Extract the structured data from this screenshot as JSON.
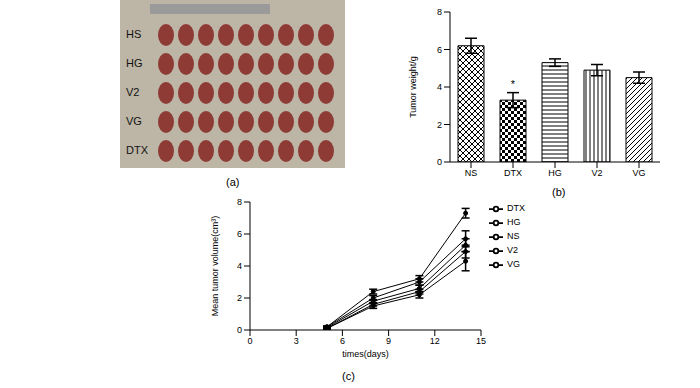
{
  "chart_data": [
    {
      "type": "image",
      "caption": "(a)",
      "row_labels": [
        "HS",
        "HG",
        "V2",
        "VG",
        "DTX"
      ]
    },
    {
      "type": "bar",
      "caption": "(b)",
      "categories": [
        "NS",
        "DTX",
        "HG",
        "V2",
        "VG"
      ],
      "values": [
        6.2,
        3.3,
        5.3,
        4.9,
        4.5
      ],
      "errors": [
        0.4,
        0.4,
        0.2,
        0.3,
        0.3
      ],
      "color": "#000000",
      "y_label": "Tumor weight/g",
      "ylim": [
        0,
        8
      ],
      "yticks": [
        0,
        2,
        4,
        6,
        8
      ],
      "annotations": [
        {
          "category": "DTX",
          "text": "*"
        }
      ]
    },
    {
      "type": "line",
      "caption": "(c)",
      "x": [
        5,
        8,
        11,
        14
      ],
      "series": [
        {
          "name": "NS",
          "color": "#000000",
          "values": [
            0.2,
            2.4,
            3.2,
            7.3
          ],
          "errors": [
            0.05,
            0.15,
            0.2,
            0.3
          ]
        },
        {
          "name": "DTX",
          "color": "#000000",
          "values": [
            0.1,
            1.5,
            2.2,
            4.3
          ],
          "errors": [
            0.05,
            0.15,
            0.2,
            0.6
          ]
        },
        {
          "name": "HG",
          "color": "#000000",
          "values": [
            0.2,
            2.0,
            3.0,
            5.7
          ],
          "errors": [
            0.05,
            0.15,
            0.2,
            0.5
          ]
        },
        {
          "name": "V2",
          "color": "#000000",
          "values": [
            0.15,
            1.8,
            2.6,
            5.3
          ],
          "errors": [
            0.05,
            0.1,
            0.2,
            0.4
          ]
        },
        {
          "name": "VG",
          "color": "#000000",
          "values": [
            0.1,
            1.6,
            2.4,
            4.9
          ],
          "errors": [
            0.05,
            0.1,
            0.15,
            0.4
          ]
        }
      ],
      "xlim": [
        0,
        15
      ],
      "xticks": [
        0,
        3,
        6,
        9,
        12,
        15
      ],
      "ylim": [
        0,
        8
      ],
      "yticks": [
        0,
        2,
        4,
        6,
        8
      ],
      "x_label": "times(days)",
      "y_label": "Mean tumor volume(cm³)",
      "legend": "right",
      "marker": "circle"
    }
  ]
}
